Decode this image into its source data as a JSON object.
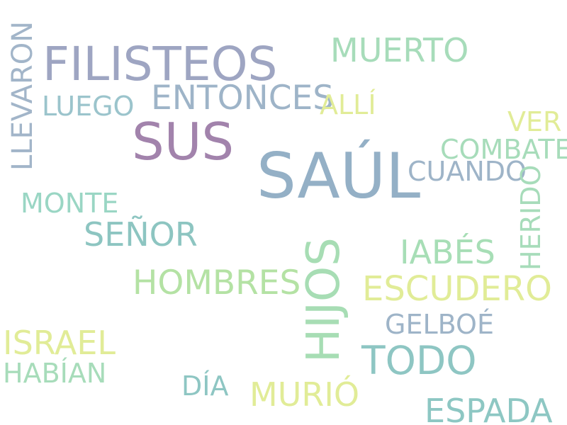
{
  "words": [
    {
      "id": "saul",
      "text": "SAÚL",
      "color": "#94b0c6"
    },
    {
      "id": "filisteos",
      "text": "FILISTEOS",
      "color": "#9ea5c2"
    },
    {
      "id": "sus",
      "text": "SUS",
      "color": "#a283ac"
    },
    {
      "id": "hijos",
      "text": "HIJOS",
      "color": "#a7ddb4"
    },
    {
      "id": "entonces",
      "text": "ENTONCES",
      "color": "#9eb4c8"
    },
    {
      "id": "muerto",
      "text": "MUERTO",
      "color": "#a7dcba"
    },
    {
      "id": "escudero",
      "text": "ESCUDERO",
      "color": "#e1ec97"
    },
    {
      "id": "todo",
      "text": "TODO",
      "color": "#8ec6c3"
    },
    {
      "id": "espada",
      "text": "ESPADA",
      "color": "#8dc7c3"
    },
    {
      "id": "israel",
      "text": "ISRAEL",
      "color": "#e1ec97"
    },
    {
      "id": "hombres",
      "text": "HOMBRES",
      "color": "#b4e2a4"
    },
    {
      "id": "senor",
      "text": "SEÑOR",
      "color": "#8dc5c1"
    },
    {
      "id": "iabes",
      "text": "IABÉS",
      "color": "#a7deb6"
    },
    {
      "id": "murio",
      "text": "MURIÓ",
      "color": "#e1ec97"
    },
    {
      "id": "llevaron",
      "text": "LLEVARON",
      "color": "#a2b5c9"
    },
    {
      "id": "combate",
      "text": "COMBATE",
      "color": "#a7dcba"
    },
    {
      "id": "gelboe",
      "text": "GELBOÉ",
      "color": "#9eb4c8"
    },
    {
      "id": "luego",
      "text": "LUEGO",
      "color": "#9bc4cc"
    },
    {
      "id": "monte",
      "text": "MONTE",
      "color": "#9ad6c4"
    },
    {
      "id": "habian",
      "text": "HABÍAN",
      "color": "#a7dcba"
    },
    {
      "id": "cuando",
      "text": "CUANDO",
      "color": "#9eb4c8"
    },
    {
      "id": "herido",
      "text": "HERIDO",
      "color": "#a7dcba"
    },
    {
      "id": "ver",
      "text": "VER",
      "color": "#e1ec97"
    },
    {
      "id": "alli",
      "text": "ALLÍ",
      "color": "#e1ec97"
    },
    {
      "id": "dia",
      "text": "DÍA",
      "color": "#8ec6c3"
    }
  ]
}
